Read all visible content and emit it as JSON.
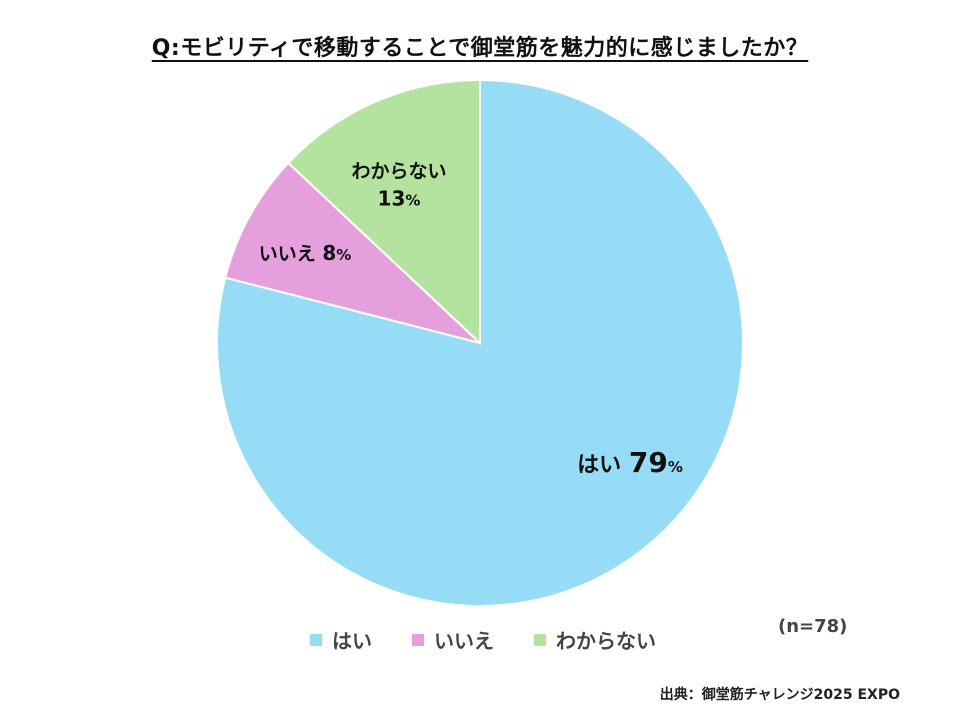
{
  "title": "Q:モビリティで移動することで御堂筋を魅力的に感じましたか？",
  "chart_data": {
    "type": "pie",
    "title": "Q:モビリティで移動することで御堂筋を魅力的に感じましたか？",
    "slices": [
      {
        "label": "はい",
        "value": 79,
        "color": "#97dcf6",
        "display": "はい"
      },
      {
        "label": "いいえ",
        "value": 8,
        "color": "#e59fdd",
        "display": "いいえ"
      },
      {
        "label": "わからない",
        "value": 13,
        "color": "#b4e3a0",
        "display": "わからない"
      }
    ],
    "start": "12 o'clock, clockwise",
    "legend_position": "bottom"
  },
  "labels": {
    "hai": {
      "name": "はい",
      "pct": "79",
      "sign": "%"
    },
    "iie": {
      "name": "いいえ",
      "pct": "8",
      "sign": "%"
    },
    "wakaranai": {
      "name": "わからない",
      "pct": "13",
      "sign": "%"
    }
  },
  "legend": [
    {
      "label": "はい",
      "color": "#97dcf6"
    },
    {
      "label": "いいえ",
      "color": "#e59fdd"
    },
    {
      "label": "わからない",
      "color": "#b4e3a0"
    }
  ],
  "sample_size": "(n=78)",
  "source": "出典：御堂筋チャレンジ2025 EXPO"
}
